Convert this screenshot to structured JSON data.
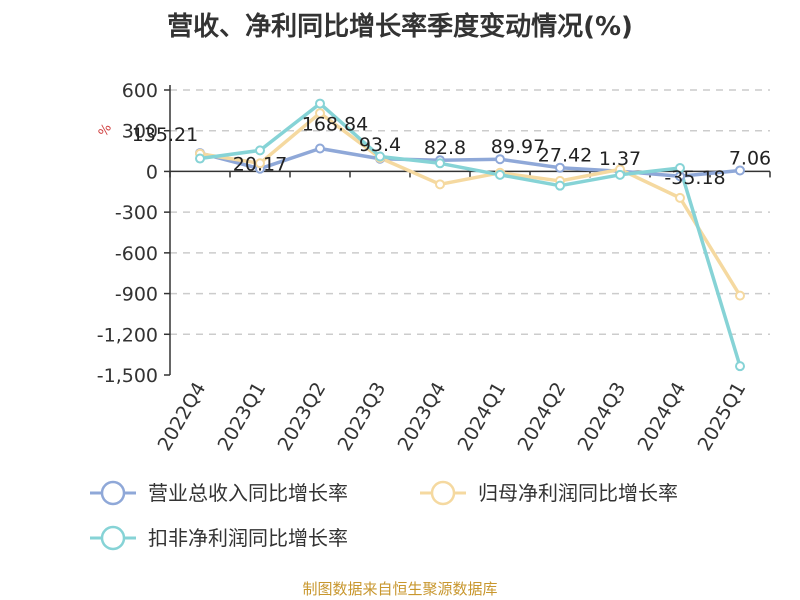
{
  "chart_data": {
    "type": "line",
    "title": "营收、净利同比增长率季度变动情况(%)",
    "unit_label": "%",
    "categories": [
      "2022Q4",
      "2023Q1",
      "2023Q2",
      "2023Q3",
      "2023Q4",
      "2024Q1",
      "2024Q2",
      "2024Q3",
      "2024Q4",
      "2025Q1"
    ],
    "ylim": [
      -1500,
      600
    ],
    "yticks": [
      600,
      300,
      0,
      -300,
      -600,
      -900,
      -1200,
      -1500
    ],
    "ytick_labels": [
      "600",
      "300",
      "0",
      "-300",
      "-600",
      "-900",
      "-1,200",
      "-1,500"
    ],
    "grid": true,
    "legend_position": "bottom",
    "series": [
      {
        "name": "营业总收入同比增长率",
        "color": "#8fa8d8",
        "values": [
          135.21,
          20.17,
          168.84,
          93.4,
          82.8,
          89.97,
          27.42,
          1.37,
          -35.18,
          7.06
        ],
        "labels": [
          "135.21",
          "20.17",
          "168.84",
          "93.4",
          "82.8",
          "89.97",
          "27.42",
          "1.37",
          "-35.18",
          "7.06"
        ]
      },
      {
        "name": "归母净利润同比增长率",
        "color": "#f5d9a0",
        "values": [
          130,
          60,
          430,
          100,
          -95,
          -10,
          -70,
          15,
          -195,
          -915
        ]
      },
      {
        "name": "扣非净利润同比增长率",
        "color": "#86d3d6",
        "values": [
          95,
          155,
          500,
          110,
          60,
          -25,
          -105,
          -25,
          25,
          -1435
        ]
      }
    ]
  },
  "footer": "制图数据来自恒生聚源数据库"
}
